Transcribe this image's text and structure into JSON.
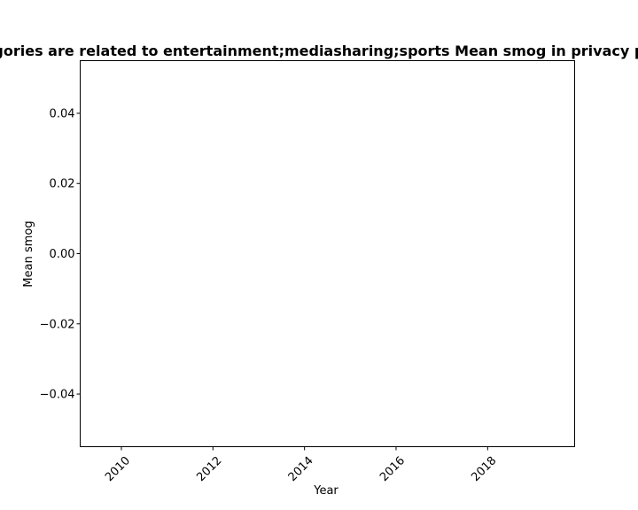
{
  "chart_data": {
    "type": "line",
    "title": "Categories are related to entertainment;mediasharing;sports Mean smog in privacy policies",
    "xlabel": "Year",
    "ylabel": "Mean smog",
    "xlim": [
      2009.1,
      2019.9
    ],
    "ylim": [
      -0.055,
      0.055
    ],
    "x_ticks": [
      2010,
      2012,
      2014,
      2016,
      2018
    ],
    "y_ticks": [
      0.04,
      0.02,
      0.0,
      -0.02,
      -0.04
    ],
    "x_tick_labels": [
      "2010",
      "2012",
      "2014",
      "2016",
      "2018"
    ],
    "y_tick_labels": [
      "0.04",
      "0.02",
      "0.00",
      "−0.02",
      "−0.04"
    ],
    "series": [],
    "grid": false,
    "legend": false
  }
}
